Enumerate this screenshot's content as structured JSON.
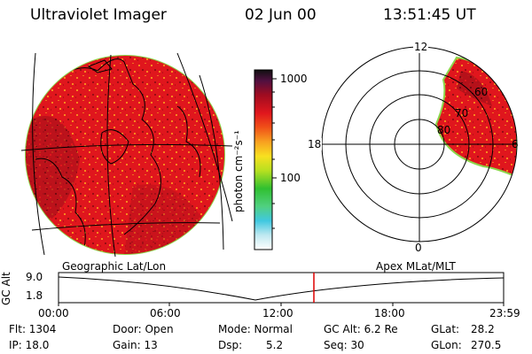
{
  "header": {
    "title": "Ultraviolet Imager",
    "date": "02 Jun 00",
    "time": "13:51:45 UT"
  },
  "colorbar": {
    "ticks": [
      "1000",
      "100"
    ],
    "unit_label": "photon cm⁻²s⁻¹"
  },
  "polar_plot": {
    "mlt_labels": {
      "top": "12",
      "left": "18",
      "right": "6",
      "bottom": "0"
    },
    "lat_labels": [
      "60",
      "70",
      "80"
    ]
  },
  "timeline": {
    "left_title": "Geographic Lat/Lon",
    "right_title": "Apex MLat/MLT",
    "axis_label": "GC Alt",
    "y_ticks": [
      "9.0",
      "1.8"
    ],
    "x_ticks": [
      "00:00",
      "06:00",
      "12:00",
      "18:00",
      "23:59"
    ],
    "current_time_marker": "13:51:45",
    "marker_color": "#dd0000"
  },
  "info": {
    "flt": "Flt: 1304",
    "ip": "IP: 18.0",
    "door": "Door: Open",
    "gain": "Gain: 13",
    "mode": "Mode: Normal",
    "dsp_label": "Dsp:",
    "dsp_value": "5.2",
    "gc_alt": "GC Alt: 6.2 Re",
    "seq": "Seq: 30",
    "glat_label": "GLat:",
    "glat_value": "28.2",
    "glon_label": "GLon:",
    "glon_value": "270.5"
  },
  "colors": {
    "image_red": "#e0161d",
    "image_dark": "#8a0a12",
    "image_orange": "#f6881f",
    "limb_green": "#8bd64a"
  }
}
